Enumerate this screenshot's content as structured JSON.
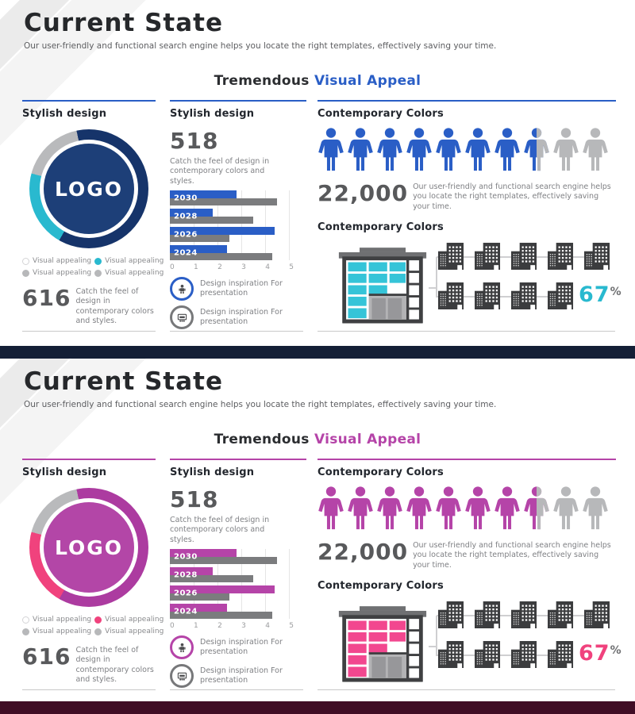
{
  "slides": [
    {
      "header": {
        "title": "Current State",
        "subtitle": "Our user-friendly  and functional search engine helps you locate the right templates, effectively saving your time."
      },
      "banner": {
        "prefix": "Tremendous",
        "accent_text": "Visual Appeal"
      },
      "col1": {
        "heading": "Stylish design",
        "logo_text": "LOGO",
        "legend": [
          {
            "label": "Visual appealing",
            "dot": "white"
          },
          {
            "label": "Visual appealing",
            "dot": "accent2"
          },
          {
            "label": "Visual appealing",
            "dot": "gray"
          },
          {
            "label": "Visual appealing",
            "dot": "gray"
          }
        ],
        "stat_value": "616",
        "stat_text": "Catch the feel of design in contemporary colors and styles."
      },
      "col2": {
        "heading": "Stylish design",
        "stat_value": "518",
        "stat_text": "Catch the feel of design in contemporary colors and styles.",
        "chart": {
          "type": "bar",
          "orientation": "horizontal",
          "categories": [
            "2030",
            "2028",
            "2026",
            "2024"
          ],
          "series": [
            {
              "name": "primary",
              "values": [
                2.8,
                1.8,
                4.4,
                2.4
              ]
            },
            {
              "name": "secondary",
              "values": [
                4.5,
                3.5,
                2.5,
                4.3
              ]
            }
          ],
          "xlim": [
            0,
            5
          ],
          "ticks": [
            "0",
            "1",
            "2",
            "3",
            "4",
            "5"
          ]
        },
        "notes": [
          {
            "icon": "figure-icon",
            "ring": "accent",
            "text": "Design inspiration  For presentation"
          },
          {
            "icon": "presentation-icon",
            "ring": "gray",
            "text": "Design inspiration  For presentation"
          }
        ]
      },
      "col3": {
        "heading_people": "Contemporary Colors",
        "people": {
          "total": 10,
          "filled": 7,
          "half": 1
        },
        "stat_value": "22,000",
        "stat_text": "Our user-friendly and functional search engine helps you  locate the right templates,  effectively saving your time.",
        "heading_buildings": "Contemporary Colors",
        "mini_building_rows": [
          5,
          4
        ],
        "percent_value": "67",
        "percent_sign": "%"
      },
      "colors": {
        "accent": "#2a5ec6",
        "ring": "#16346a",
        "logo_bg": "#1d3f78",
        "accent2": "#29b9cf",
        "window": "#35c4d8",
        "bottom_bar": "#141f36"
      }
    },
    {
      "header": {
        "title": "Current State",
        "subtitle": "Our user-friendly  and functional search engine helps you locate the right templates, effectively saving your time."
      },
      "banner": {
        "prefix": "Tremendous",
        "accent_text": "Visual Appeal"
      },
      "col1": {
        "heading": "Stylish design",
        "logo_text": "LOGO",
        "legend": [
          {
            "label": "Visual appealing",
            "dot": "white"
          },
          {
            "label": "Visual appealing",
            "dot": "accent2"
          },
          {
            "label": "Visual appealing",
            "dot": "gray"
          },
          {
            "label": "Visual appealing",
            "dot": "gray"
          }
        ],
        "stat_value": "616",
        "stat_text": "Catch the feel of design in contemporary colors and styles."
      },
      "col2": {
        "heading": "Stylish design",
        "stat_value": "518",
        "stat_text": "Catch the feel of design in contemporary colors and styles.",
        "chart": {
          "type": "bar",
          "orientation": "horizontal",
          "categories": [
            "2030",
            "2028",
            "2026",
            "2024"
          ],
          "series": [
            {
              "name": "primary",
              "values": [
                2.8,
                1.8,
                4.4,
                2.4
              ]
            },
            {
              "name": "secondary",
              "values": [
                4.5,
                3.5,
                2.5,
                4.3
              ]
            }
          ],
          "xlim": [
            0,
            5
          ],
          "ticks": [
            "0",
            "1",
            "2",
            "3",
            "4",
            "5"
          ]
        },
        "notes": [
          {
            "icon": "figure-icon",
            "ring": "accent",
            "text": "Design inspiration  For presentation"
          },
          {
            "icon": "presentation-icon",
            "ring": "gray",
            "text": "Design inspiration  For presentation"
          }
        ]
      },
      "col3": {
        "heading_people": "Contemporary Colors",
        "people": {
          "total": 10,
          "filled": 7,
          "half": 1
        },
        "stat_value": "22,000",
        "stat_text": "Our user-friendly and functional search engine helps you  locate the right templates,  effectively saving your time.",
        "heading_buildings": "Contemporary Colors",
        "mini_building_rows": [
          5,
          4
        ],
        "percent_value": "67",
        "percent_sign": "%"
      },
      "colors": {
        "accent": "#b544a8",
        "ring": "#ac3ba0",
        "logo_bg": "#b346a7",
        "accent2": "#f0427d",
        "window": "#f2478f",
        "bottom_bar": "#400d25"
      }
    }
  ]
}
